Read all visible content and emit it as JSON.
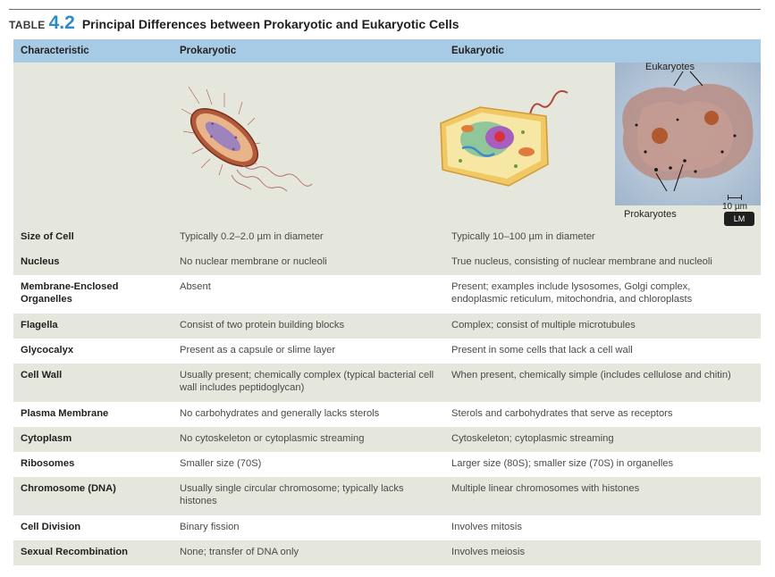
{
  "title": {
    "label": "TABLE",
    "number": "4.2",
    "text": "Principal Differences between Prokaryotic and Eukaryotic Cells"
  },
  "headers": [
    "Characteristic",
    "Prokaryotic",
    "Eukaryotic"
  ],
  "micrograph": {
    "label_top": "Eukaryotes",
    "label_bottom": "Prokaryotes",
    "scale": "10 µm",
    "badge": "LM"
  },
  "rows": [
    {
      "characteristic": "Size of Cell",
      "prokaryotic": "Typically 0.2–2.0 µm in diameter",
      "eukaryotic": "Typically 10–100 µm in diameter"
    },
    {
      "characteristic": "Nucleus",
      "prokaryotic": "No nuclear membrane or nucleoli",
      "eukaryotic": "True nucleus, consisting of nuclear membrane and nucleoli"
    },
    {
      "characteristic": "Membrane-Enclosed Organelles",
      "prokaryotic": "Absent",
      "eukaryotic": "Present; examples include lysosomes, Golgi complex, endoplasmic reticulum, mitochondria, and chloroplasts"
    },
    {
      "characteristic": "Flagella",
      "prokaryotic": "Consist of two protein building blocks",
      "eukaryotic": "Complex; consist of multiple microtubules"
    },
    {
      "characteristic": "Glycocalyx",
      "prokaryotic": "Present as a capsule or slime layer",
      "eukaryotic": "Present in some cells that lack a cell wall"
    },
    {
      "characteristic": "Cell Wall",
      "prokaryotic": "Usually present; chemically complex (typical bacterial cell wall includes peptidoglycan)",
      "eukaryotic": "When present, chemically simple (includes cellulose and chitin)"
    },
    {
      "characteristic": "Plasma Membrane",
      "prokaryotic": "No carbohydrates and generally lacks sterols",
      "eukaryotic": "Sterols and carbohydrates that serve as receptors"
    },
    {
      "characteristic": "Cytoplasm",
      "prokaryotic": "No cytoskeleton or cytoplasmic streaming",
      "eukaryotic": "Cytoskeleton; cytoplasmic streaming"
    },
    {
      "characteristic": "Ribosomes",
      "prokaryotic": "Smaller size (70S)",
      "eukaryotic": "Larger size (80S); smaller size (70S) in organelles"
    },
    {
      "characteristic": "Chromosome (DNA)",
      "prokaryotic": "Usually single circular chromosome; typically lacks histones",
      "eukaryotic": "Multiple linear chromosomes with histones"
    },
    {
      "characteristic": "Cell Division",
      "prokaryotic": "Binary fission",
      "eukaryotic": "Involves mitosis"
    },
    {
      "characteristic": "Sexual Recombination",
      "prokaryotic": "None; transfer of DNA only",
      "eukaryotic": "Involves meiosis"
    }
  ],
  "colors": {
    "header_bg": "#a8cbe5",
    "shade_bg": "#e6e7dc",
    "accent": "#2e8bc9"
  }
}
